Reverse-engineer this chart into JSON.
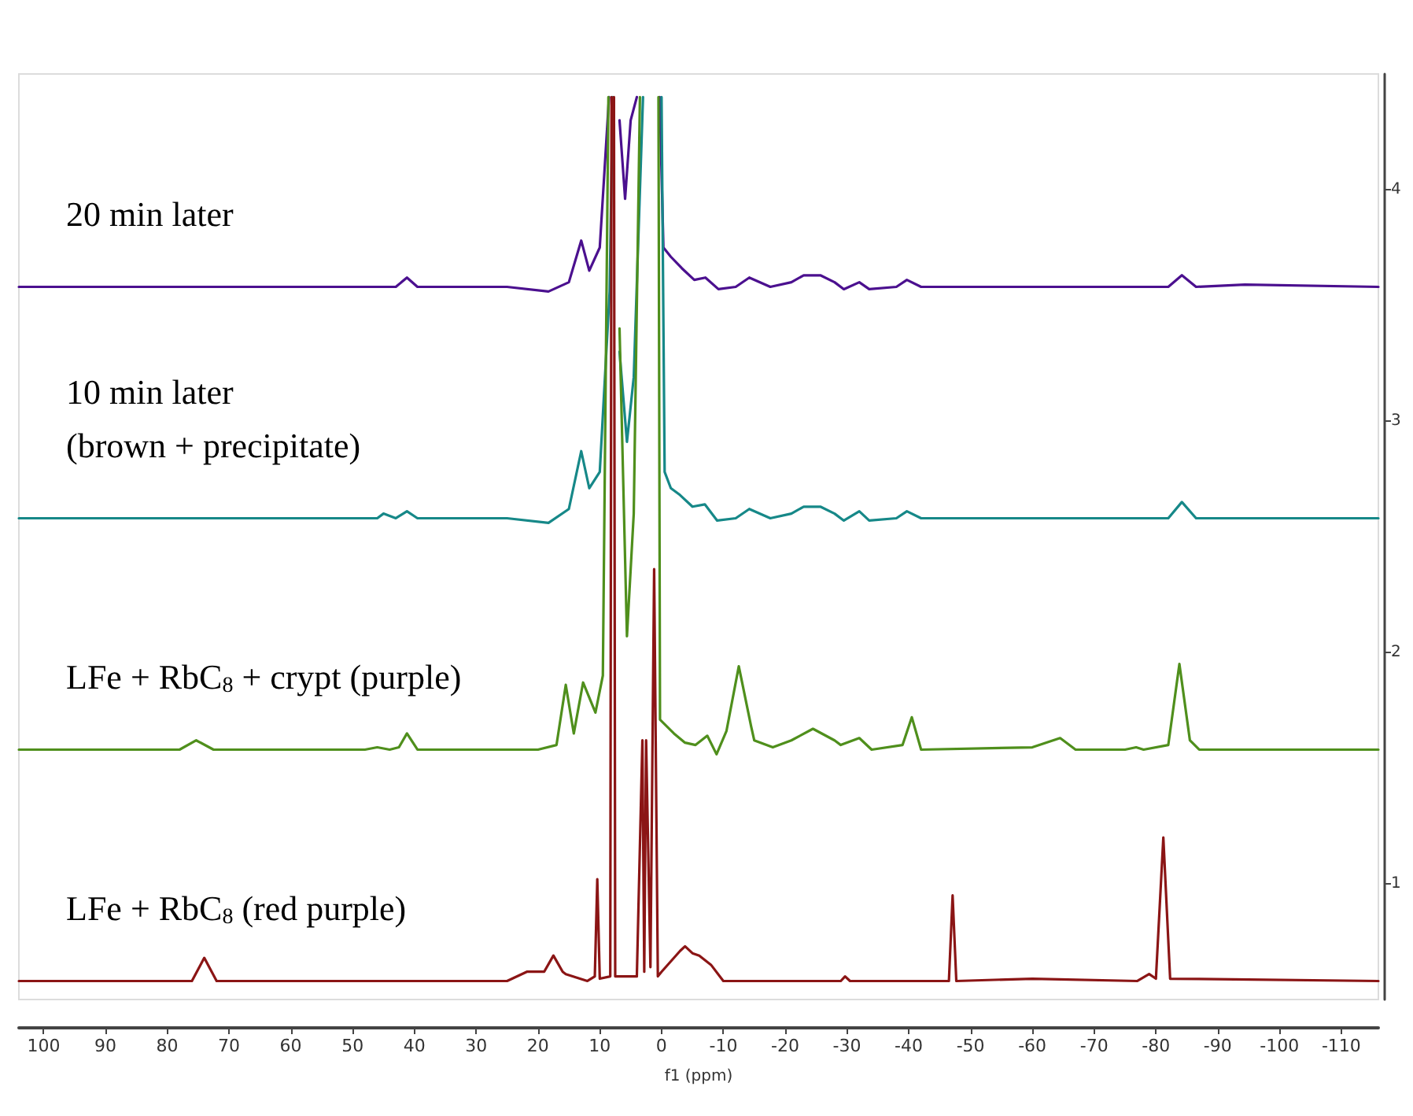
{
  "chart_data": {
    "type": "line",
    "xlabel": "f1 (ppm)",
    "xlim": [
      104,
      -116
    ],
    "xticks": [
      100,
      90,
      80,
      70,
      60,
      50,
      40,
      30,
      20,
      10,
      0,
      -10,
      -20,
      -30,
      -40,
      -50,
      -60,
      -70,
      -80,
      -90,
      -100,
      -110
    ],
    "ylim": [
      0.5,
      4.5
    ],
    "yticks": [
      1,
      2,
      3,
      4
    ],
    "grid": false,
    "legend": false,
    "marker": "none",
    "line_style": "solid",
    "series": [
      {
        "name": "20 min later",
        "color": "#4b108f",
        "x": [
          104,
          60,
          43,
          41.2,
          39.5,
          25,
          18.3,
          15,
          13,
          11.7,
          10,
          8.5,
          7.5,
          6.8,
          5.9,
          5,
          4,
          1,
          0.3,
          -0.3,
          -1.5,
          -3.3,
          -5.3,
          -7.1,
          -9.2,
          -12,
          -14.2,
          -17.6,
          -21,
          -23,
          -25.7,
          -28,
          -29.5,
          -32,
          -33.6,
          -38,
          -39.7,
          -42,
          -60,
          -82,
          -84.2,
          -86.5,
          -94.4,
          -116
        ],
        "values": [
          3.58,
          3.58,
          3.58,
          3.62,
          3.58,
          3.58,
          3.56,
          3.6,
          3.78,
          3.65,
          3.75,
          4.4,
          null,
          4.3,
          3.96,
          4.3,
          4.4,
          null,
          4.4,
          3.75,
          3.71,
          3.66,
          3.61,
          3.62,
          3.57,
          3.58,
          3.62,
          3.58,
          3.6,
          3.63,
          3.63,
          3.6,
          3.57,
          3.6,
          3.57,
          3.58,
          3.61,
          3.58,
          3.58,
          3.58,
          3.63,
          3.58,
          3.59,
          3.58
        ]
      },
      {
        "name": "10 min later\n(brown + precipitate)",
        "color": "#168888",
        "x": [
          104,
          60,
          46,
          45,
          43,
          41.2,
          39.5,
          25,
          18.3,
          15,
          13,
          11.7,
          10,
          8.4,
          7.9,
          7.5,
          6.8,
          5.6,
          4.5,
          3,
          1,
          0,
          -0.5,
          -1.5,
          -3,
          -5,
          -7,
          -9,
          -12,
          -14.2,
          -17.6,
          -21,
          -23,
          -25.7,
          -28,
          -29.5,
          -32,
          -33.6,
          -38,
          -39.7,
          -42,
          -60,
          -82,
          -84.2,
          -86.5,
          -116
        ],
        "values": [
          2.58,
          2.58,
          2.58,
          2.6,
          2.58,
          2.61,
          2.58,
          2.58,
          2.56,
          2.62,
          2.87,
          2.71,
          2.78,
          3.56,
          4.4,
          null,
          3.3,
          2.91,
          3.19,
          4.4,
          null,
          4.4,
          2.78,
          2.71,
          2.68,
          2.63,
          2.64,
          2.57,
          2.58,
          2.62,
          2.58,
          2.6,
          2.63,
          2.63,
          2.6,
          2.57,
          2.61,
          2.57,
          2.58,
          2.61,
          2.58,
          2.58,
          2.58,
          2.65,
          2.58,
          2.58
        ]
      },
      {
        "name": "LFe + RbC$_{8}$ + crypt (purple)",
        "color": "#4f8f1c",
        "x": [
          104,
          78,
          75.3,
          72.5,
          48,
          46,
          44,
          42.5,
          41.2,
          39.5,
          20,
          17,
          15.5,
          14.2,
          12.7,
          10.7,
          9.5,
          8.6,
          8,
          6.8,
          5.6,
          4.5,
          3.5,
          0.8,
          0.5,
          0.25,
          -2,
          -3.8,
          -5.5,
          -7.4,
          -8.9,
          -10.5,
          -12.5,
          -14.5,
          -15,
          -18,
          -21,
          -24.5,
          -28,
          -29,
          -32,
          -34,
          -39,
          -40.5,
          -42,
          -60,
          -64.5,
          -67,
          -75,
          -76.8,
          -78,
          -82,
          -83.8,
          -85.5,
          -87,
          -116
        ],
        "values": [
          1.58,
          1.58,
          1.62,
          1.58,
          1.58,
          1.59,
          1.58,
          1.59,
          1.65,
          1.58,
          1.58,
          1.6,
          1.86,
          1.65,
          1.87,
          1.74,
          1.9,
          4.4,
          null,
          3.4,
          2.07,
          2.6,
          4.4,
          null,
          4.4,
          1.71,
          1.65,
          1.61,
          1.6,
          1.64,
          1.56,
          1.66,
          1.94,
          1.68,
          1.62,
          1.59,
          1.62,
          1.67,
          1.62,
          1.6,
          1.63,
          1.58,
          1.6,
          1.72,
          1.58,
          1.59,
          1.63,
          1.58,
          1.58,
          1.59,
          1.58,
          1.6,
          1.95,
          1.62,
          1.58,
          1.58
        ]
      },
      {
        "name": "LFe + RbC$_{8}$ (red purple)",
        "color": "#8b1515",
        "x": [
          104,
          76,
          74,
          72,
          50,
          25,
          21.8,
          19,
          17.5,
          16,
          15.5,
          12,
          10.8,
          10.4,
          10,
          8.3,
          8.1,
          7.9,
          7.7,
          7.5,
          4,
          3.1,
          2.8,
          2.5,
          1.8,
          1.2,
          0.6,
          0,
          -3,
          -3.8,
          -5,
          -6.1,
          -8,
          -10,
          -29,
          -29.7,
          -30.5,
          -46.5,
          -47.1,
          -47.7,
          -60,
          -77,
          -78.9,
          -80,
          -81.2,
          -82.3,
          -116
        ],
        "values": [
          0.58,
          0.58,
          0.68,
          0.58,
          0.58,
          0.58,
          0.62,
          0.62,
          0.69,
          0.62,
          0.61,
          0.58,
          0.6,
          1.02,
          0.59,
          0.6,
          4.4,
          null,
          4.4,
          0.6,
          0.6,
          1.62,
          0.62,
          1.62,
          0.64,
          2.36,
          0.6,
          0.62,
          0.71,
          0.73,
          0.7,
          0.69,
          0.65,
          0.58,
          0.58,
          0.6,
          0.58,
          0.58,
          0.95,
          0.58,
          0.59,
          0.58,
          0.61,
          0.59,
          1.2,
          0.59,
          0.58
        ]
      }
    ]
  }
}
